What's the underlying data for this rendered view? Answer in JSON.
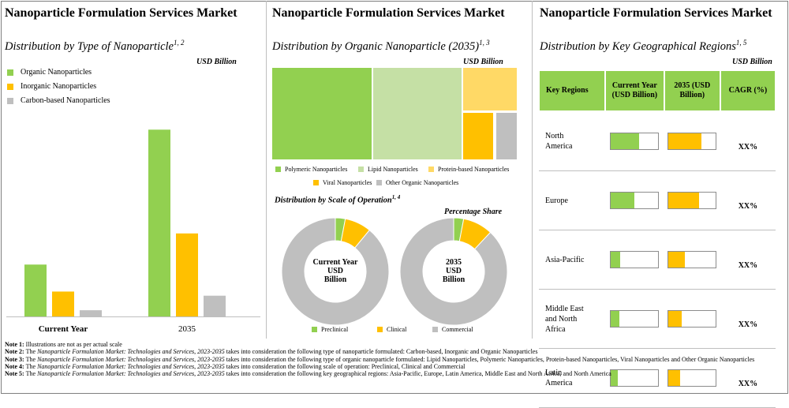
{
  "colors": {
    "organic": "#92d050",
    "inorganic": "#ffc000",
    "carbon": "#bfbfbf",
    "polymeric": "#92d050",
    "lipid": "#c5e0a5",
    "protein": "#ffd966",
    "viral": "#ffc000",
    "other": "#bfbfbf",
    "header": "#92d050"
  },
  "panel1": {
    "title": "Nanoparticle Formulation Services Market",
    "subtitle": "Distribution by Type of Nanoparticle",
    "subtitle_sup": "1, 2",
    "unit": "USD Billion"
  },
  "panel2": {
    "title": "Nanoparticle Formulation Services Market",
    "subtitle": "Distribution by Organic Nanoparticle (2035)",
    "subtitle_sup": "1, 3",
    "unit": "USD Billion",
    "scale_title": "Distribution by Scale of Operation",
    "scale_sup": "1, 4",
    "scale_unit": "Percentage Share",
    "donut1_label": [
      "Current Year",
      "USD",
      "Billion"
    ],
    "donut2_label": [
      "2035",
      "USD",
      "Billion"
    ]
  },
  "panel3": {
    "title": "Nanoparticle Formulation Services Market",
    "subtitle": "Distribution by Key Geographical Regions",
    "subtitle_sup": "1, 5",
    "unit": "USD Billion",
    "headers": [
      "Key Regions",
      "Current Year (USD Billion)",
      "2035 (USD Billion)",
      "CAGR (%)"
    ]
  },
  "chart_data": [
    {
      "type": "bar",
      "title": "Distribution by Type of Nanoparticle",
      "ylabel": "USD Billion",
      "categories": [
        "Current Year",
        "2035"
      ],
      "series": [
        {
          "name": "Organic Nanoparticles",
          "values": [
            0.5,
            1.8
          ]
        },
        {
          "name": "Inorganic Nanoparticles",
          "values": [
            0.24,
            0.8
          ]
        },
        {
          "name": "Carbon-based Nanoparticles",
          "values": [
            0.06,
            0.2
          ]
        }
      ],
      "ylim": [
        0,
        2.0
      ]
    },
    {
      "type": "treemap",
      "title": "Distribution by Organic Nanoparticle (2035)",
      "categories": [
        "Polymeric Nanoparticles",
        "Lipid Nanoparticles",
        "Protein-based Nanoparticles",
        "Viral Nanoparticles",
        "Other Organic Nanoparticles"
      ],
      "values": [
        40,
        37,
        8.5,
        9,
        5.5
      ]
    },
    {
      "type": "pie",
      "title": "Distribution by Scale of Operation - Current Year",
      "categories": [
        "Preclinical",
        "Clinical",
        "Commercial"
      ],
      "values": [
        3,
        8,
        89
      ]
    },
    {
      "type": "pie",
      "title": "Distribution by Scale of Operation - 2035",
      "categories": [
        "Preclinical",
        "Clinical",
        "Commercial"
      ],
      "values": [
        3,
        9,
        88
      ]
    },
    {
      "type": "table",
      "title": "Distribution by Key Geographical Regions",
      "columns": [
        "Key Regions",
        "Current Year (USD Billion)",
        "2035 (USD Billion)",
        "CAGR (%)"
      ],
      "rows": [
        {
          "region": "North America",
          "current_share": 0.6,
          "share_2035": 0.7,
          "cagr": "XX%"
        },
        {
          "region": "Europe",
          "current_share": 0.5,
          "share_2035": 0.65,
          "cagr": "XX%"
        },
        {
          "region": "Asia-Pacific",
          "current_share": 0.2,
          "share_2035": 0.35,
          "cagr": "XX%"
        },
        {
          "region": "Middle East and North Africa",
          "current_share": 0.18,
          "share_2035": 0.28,
          "cagr": "XX%"
        },
        {
          "region": "Latin America",
          "current_share": 0.15,
          "share_2035": 0.25,
          "cagr": "XX%"
        }
      ]
    }
  ],
  "notes": [
    {
      "label": "Note 1:",
      "text": "Illustrations are not as per actual scale"
    },
    {
      "label": "Note 2:",
      "pre": "The",
      "italic": "Nanoparticle Formulation Market: Technologies and Services, 2023-2035",
      "text": "takes into consideration the following type of nanoparticle formulated: Carbon-based, Inorganic and Organic Nanoparticles"
    },
    {
      "label": "Note 3:",
      "pre": "The",
      "italic": "Nanoparticle Formulation Market: Technologies and Services, 2023-2035",
      "text": "takes into consideration the following type of organic nanoparticle formulated: Lipid Nanoparticles, Polymeric Nanoparticles, Protein-based Nanoparticles, Viral Nanoparticles and Other Organic Nanoparticles"
    },
    {
      "label": "Note 4:",
      "pre": "The",
      "italic": "Nanoparticle Formulation Market: Technologies and Services, 2023-2035",
      "text": "takes into consideration the following scale of operation: Preclinical, Clinical and Commercial"
    },
    {
      "label": "Note 5:",
      "pre": "The",
      "italic": "Nanoparticle Formulation Market: Technologies and Services, 2023-2035",
      "text": "takes into consideration the following key geographical regions: Asia-Pacific, Europe, Latin America, Middle East and North Africa, and North America"
    }
  ]
}
